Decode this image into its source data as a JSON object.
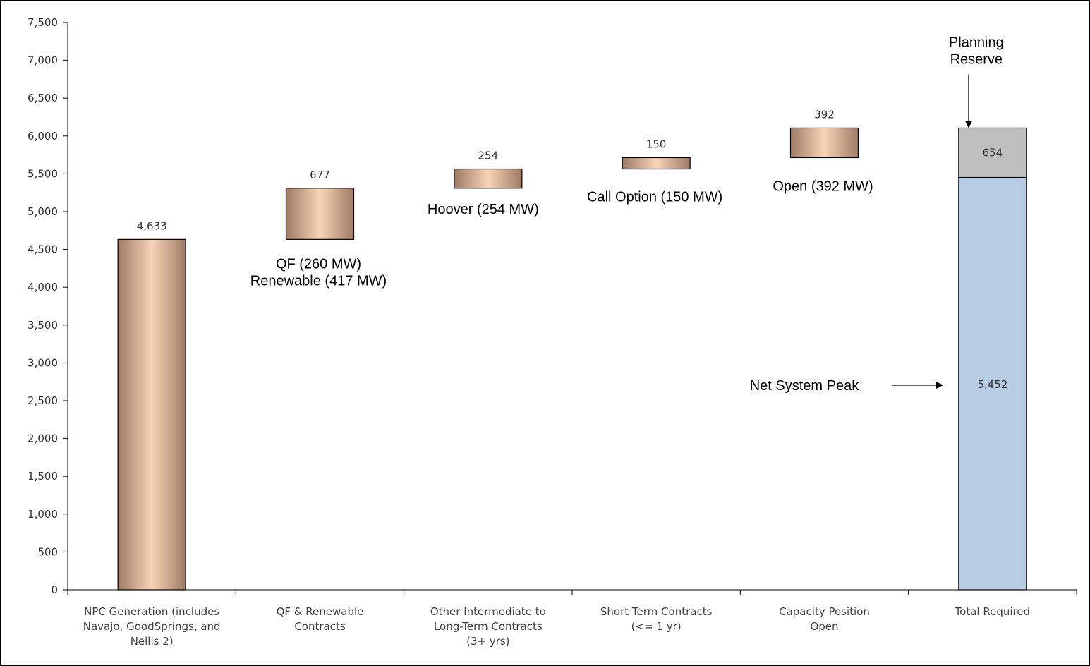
{
  "chart_data": {
    "type": "bar",
    "subtype": "waterfall",
    "categories": [
      [
        "NPC Generation (includes",
        "Navajo, GoodSprings, and",
        "Nellis 2)"
      ],
      [
        "QF & Renewable",
        "Contracts"
      ],
      [
        "Other Intermediate to",
        "Long-Term Contracts",
        "(3+ yrs)"
      ],
      [
        "Short Term Contracts",
        "(<= 1 yr)"
      ],
      [
        "Capacity Position",
        "Open"
      ],
      [
        "Total Required"
      ]
    ],
    "series": [
      {
        "values": [
          {
            "base": 0,
            "value": 4633
          },
          {
            "base": 4633,
            "value": 677
          },
          {
            "base": 5310,
            "value": 254
          },
          {
            "base": 5564,
            "value": 150
          },
          {
            "base": 5714,
            "value": 392
          }
        ]
      },
      {
        "values": [
          {
            "base": 0,
            "value": 5452
          }
        ],
        "color": "#b8cce4"
      },
      {
        "values": [
          {
            "base": 5452,
            "value": 654
          }
        ],
        "color": "#bfbfbf"
      }
    ],
    "data_labels": [
      "4,633",
      "677",
      "254",
      "150",
      "392",
      "654",
      "5,452"
    ],
    "yticks": [
      "0",
      "500",
      "1,000",
      "1,500",
      "2,000",
      "2,500",
      "3,000",
      "3,500",
      "4,000",
      "4,500",
      "5,000",
      "5,500",
      "6,000",
      "6,500",
      "7,000",
      "7,500"
    ],
    "ylim": [
      0,
      7500
    ],
    "grid": false,
    "colors": {
      "bar_dark": "#9e7b65",
      "bar_light": "#f9d3b6",
      "net_peak": "#b8cce4",
      "reserve": "#bfbfbf"
    },
    "annotations": [
      [
        "QF (260 MW)",
        "Renewable  (417 MW)"
      ],
      [
        "Hoover  (254 MW)"
      ],
      [
        "Call Option (150 MW)"
      ],
      [
        "Open (392 MW)"
      ],
      [
        "Planning",
        "Reserve"
      ],
      [
        "Net System Peak"
      ]
    ]
  }
}
